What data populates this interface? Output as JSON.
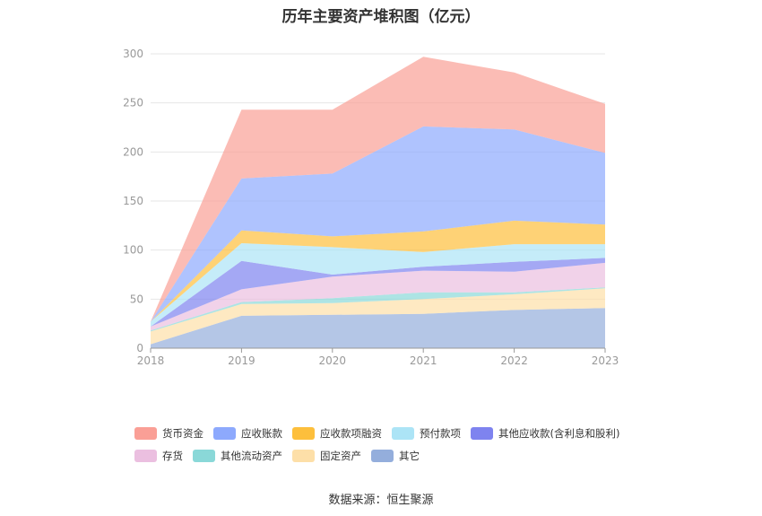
{
  "chart_data": {
    "type": "area",
    "stacked": true,
    "title": "历年主要资产堆积图（亿元）",
    "x": [
      "2018",
      "2019",
      "2020",
      "2021",
      "2022",
      "2023"
    ],
    "ylim": [
      0,
      300
    ],
    "yticks": [
      0,
      50,
      100,
      150,
      200,
      250,
      300
    ],
    "grid": true,
    "legend_position": "bottom",
    "series": [
      {
        "name": "其它",
        "color": "#94aedc",
        "values": [
          4,
          33,
          34,
          35,
          39,
          41
        ]
      },
      {
        "name": "固定资产",
        "color": "#fddfa8",
        "values": [
          13,
          12,
          12,
          15,
          16,
          20
        ]
      },
      {
        "name": "其他流动资产",
        "color": "#8ad8d8",
        "values": [
          1,
          2,
          5,
          7,
          2,
          1
        ]
      },
      {
        "name": "存货",
        "color": "#ebbfe0",
        "values": [
          4,
          13,
          22,
          22,
          21,
          25
        ]
      },
      {
        "name": "其他应收款(含利息和股利)",
        "color": "#7e83ef",
        "values": [
          0,
          29,
          2,
          4,
          10,
          5
        ]
      },
      {
        "name": "预付款项",
        "color": "#ace4f6",
        "values": [
          5,
          18,
          28,
          15,
          18,
          14
        ]
      },
      {
        "name": "应收款项融资",
        "color": "#fdbf3c",
        "values": [
          0,
          13,
          11,
          21,
          24,
          20
        ]
      },
      {
        "name": "应收账款",
        "color": "#8da9fd",
        "values": [
          0,
          53,
          64,
          107,
          93,
          73
        ]
      },
      {
        "name": "货币资金",
        "color": "#fa9f96",
        "values": [
          0,
          70,
          65,
          71,
          58,
          50
        ]
      }
    ],
    "legend_order": [
      "货币资金",
      "应收账款",
      "应收款项融资",
      "预付款项",
      "其他应收款(含利息和股利)",
      "存货",
      "其他流动资产",
      "固定资产",
      "其它"
    ]
  },
  "source_text": "数据来源：恒生聚源"
}
